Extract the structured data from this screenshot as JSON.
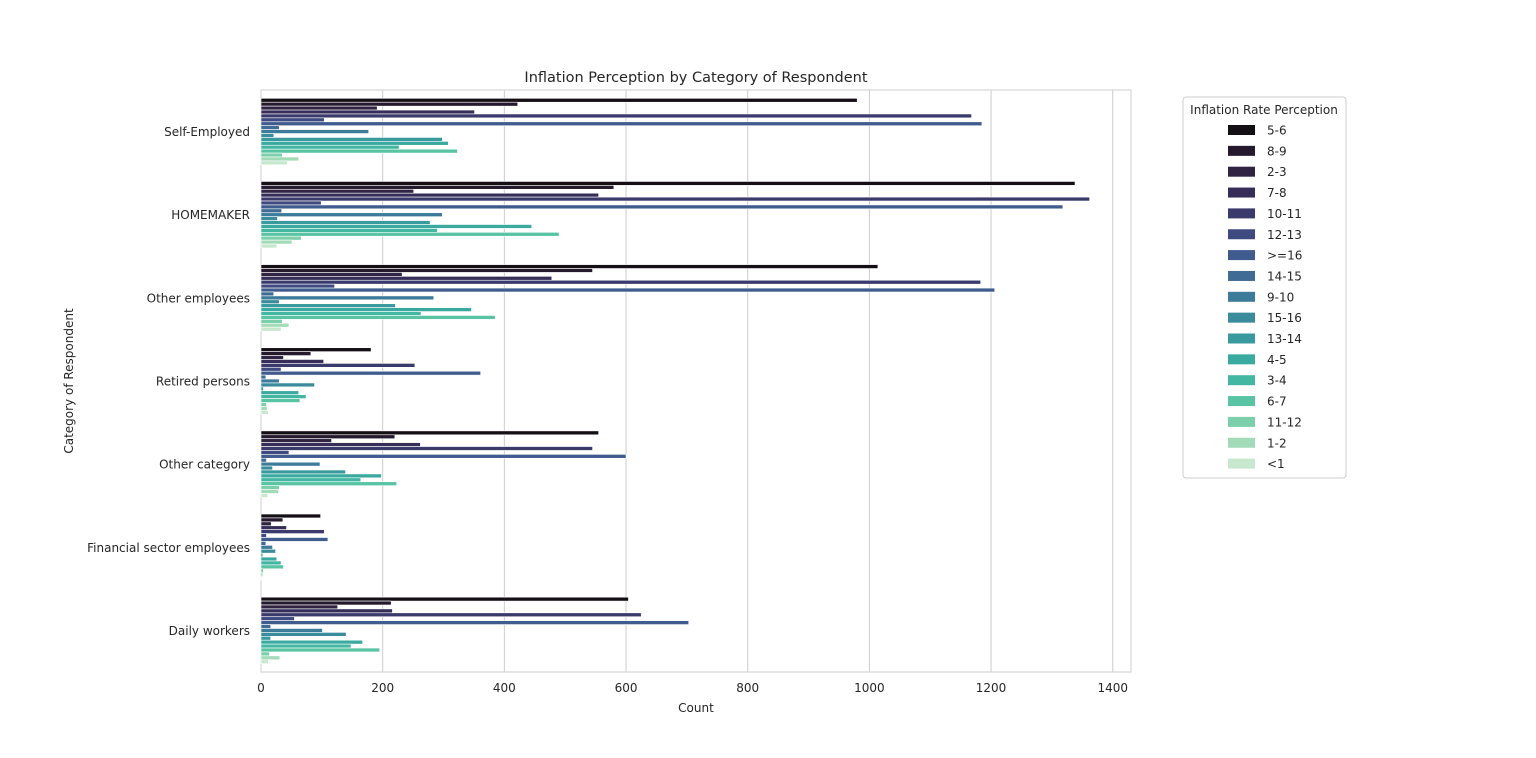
{
  "chart_data": {
    "type": "bar",
    "orientation": "horizontal",
    "title": "Inflation Perception by Category of Respondent",
    "xlabel": "Count",
    "ylabel": "Category of Respondent",
    "xlim": [
      0,
      1430
    ],
    "xticks": [
      0,
      200,
      400,
      600,
      800,
      1000,
      1200,
      1400
    ],
    "grid": "x",
    "legend": {
      "title": "Inflation Rate Perception",
      "placement": "outside-right"
    },
    "categories": [
      "Self-Employed",
      "HOMEMAKER",
      "Other employees",
      "Retired persons",
      "Other category",
      "Financial sector employees",
      "Daily workers"
    ],
    "series": [
      {
        "name": "5-6",
        "color": "#140e15",
        "values": [
          980,
          1338,
          1014,
          181,
          555,
          98,
          604
        ]
      },
      {
        "name": "8-9",
        "color": "#251a2d",
        "values": [
          422,
          580,
          545,
          82,
          220,
          36,
          214
        ]
      },
      {
        "name": "2-3",
        "color": "#302442",
        "values": [
          191,
          251,
          232,
          37,
          116,
          17,
          126
        ]
      },
      {
        "name": "7-8",
        "color": "#362e59",
        "values": [
          351,
          555,
          478,
          103,
          262,
          42,
          216
        ]
      },
      {
        "name": "10-11",
        "color": "#3b3a6d",
        "values": [
          1168,
          1362,
          1183,
          253,
          545,
          104,
          625
        ]
      },
      {
        "name": "12-13",
        "color": "#3f4a80",
        "values": [
          104,
          99,
          121,
          33,
          46,
          9,
          55
        ]
      },
      {
        "name": ">=16",
        "color": "#405b8d",
        "values": [
          1185,
          1318,
          1206,
          361,
          600,
          110,
          703
        ]
      },
      {
        "name": "14-15",
        "color": "#3f6b95",
        "values": [
          30,
          34,
          21,
          8,
          9,
          8,
          16
        ]
      },
      {
        "name": "9-10",
        "color": "#3c7b99",
        "values": [
          177,
          298,
          284,
          30,
          97,
          19,
          101
        ]
      },
      {
        "name": "15-16",
        "color": "#3a8b9c",
        "values": [
          21,
          27,
          30,
          88,
          19,
          24,
          140
        ]
      },
      {
        "name": "13-14",
        "color": "#389a9e",
        "values": [
          298,
          278,
          221,
          4,
          139,
          3,
          16
        ]
      },
      {
        "name": "4-5",
        "color": "#3aaaa0",
        "values": [
          308,
          445,
          346,
          62,
          198,
          26,
          167
        ]
      },
      {
        "name": "3-4",
        "color": "#43b7a2",
        "values": [
          227,
          290,
          263,
          74,
          164,
          33,
          148
        ]
      },
      {
        "name": "6-7",
        "color": "#58c4a4",
        "values": [
          323,
          490,
          385,
          64,
          223,
          37,
          195
        ]
      },
      {
        "name": "11-12",
        "color": "#7bd0ab",
        "values": [
          35,
          66,
          35,
          9,
          30,
          4,
          14
        ]
      },
      {
        "name": "1-2",
        "color": "#a3dbb8",
        "values": [
          62,
          51,
          46,
          10,
          29,
          3,
          31
        ]
      },
      {
        "name": "<1",
        "color": "#c7e8cf",
        "values": [
          43,
          26,
          33,
          12,
          11,
          1,
          12
        ]
      }
    ]
  }
}
